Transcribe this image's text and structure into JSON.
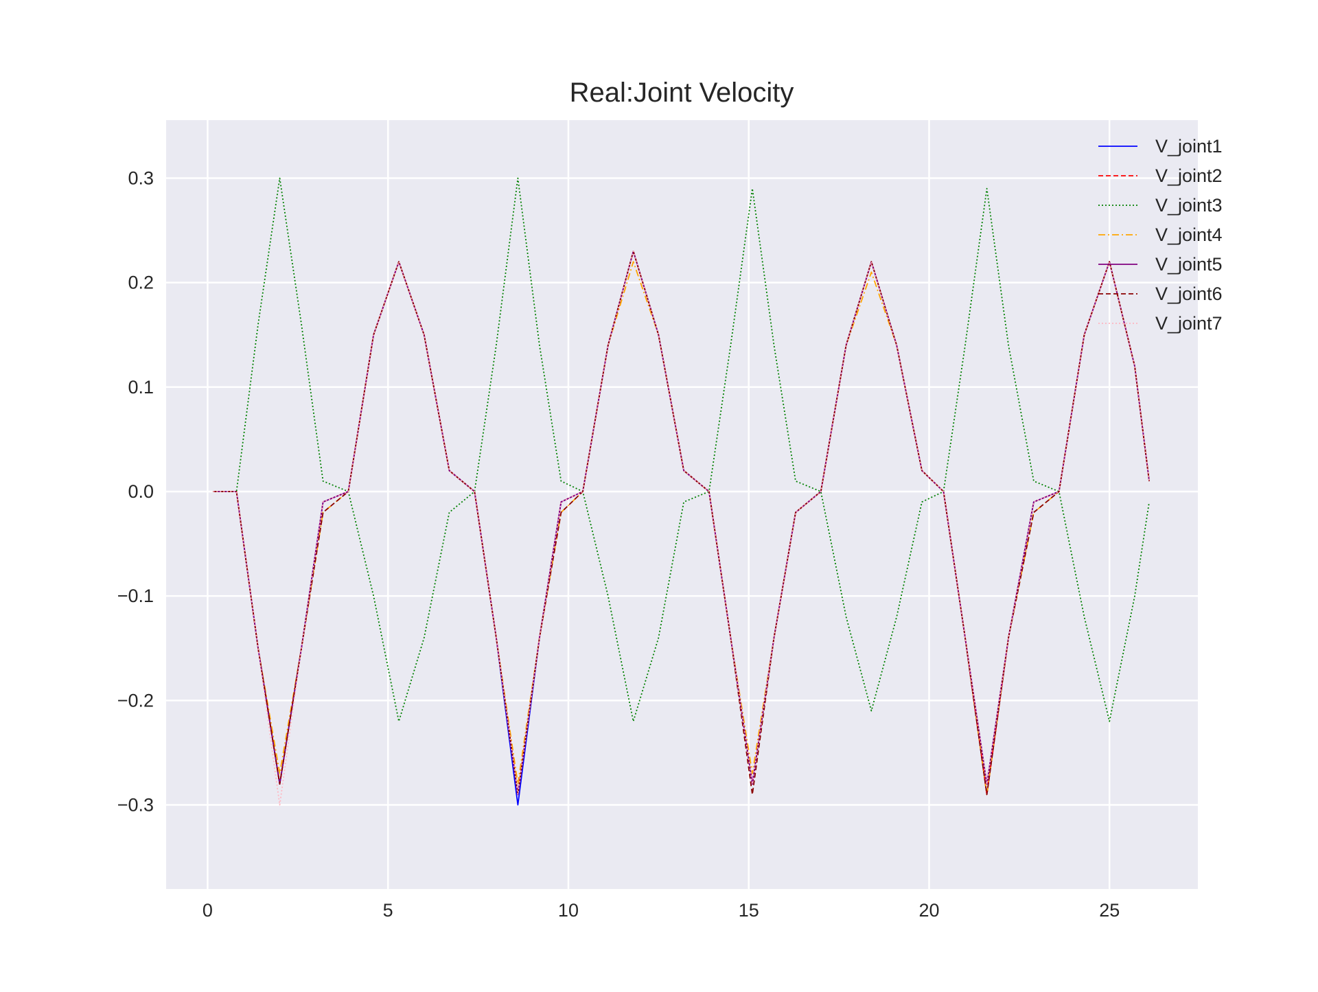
{
  "chart_data": {
    "type": "line",
    "title": "Real:Joint Velocity",
    "xlabel": "",
    "ylabel": "",
    "xlim": [
      -1.15,
      27.45
    ],
    "ylim": [
      -0.3805,
      0.3555
    ],
    "xticks": [
      0,
      5,
      10,
      15,
      20,
      25
    ],
    "yticks": [
      -0.3,
      -0.2,
      -0.1,
      0.0,
      0.1,
      0.2,
      0.3
    ],
    "xtick_labels": [
      "0",
      "5",
      "10",
      "15",
      "20",
      "25"
    ],
    "ytick_labels": [
      "−0.3",
      "−0.2",
      "−0.1",
      "0.0",
      "0.1",
      "0.2",
      "0.3"
    ],
    "grid": true,
    "background": "#eaeaf2",
    "legend_position": "top-right",
    "series": [
      {
        "name": "V_joint1",
        "color": "#0000ff",
        "style": "solid",
        "x": [
          0.15,
          0.8,
          1.4,
          2.0,
          2.6,
          3.2,
          3.9,
          4.6,
          5.3,
          6.0,
          6.7,
          7.4,
          8.0,
          8.6,
          9.2,
          9.8,
          10.4,
          11.1,
          11.8,
          12.5,
          13.2,
          13.9,
          14.5,
          15.1,
          15.7,
          16.3,
          17.0,
          17.7,
          18.4,
          19.1,
          19.8,
          20.4,
          21.0,
          21.6,
          22.2,
          22.9,
          23.6,
          24.3,
          25.0,
          25.7,
          26.1
        ],
        "y": [
          0.0,
          0.0,
          -0.15,
          -0.28,
          -0.15,
          -0.01,
          0.0,
          0.15,
          0.22,
          0.15,
          0.02,
          0.0,
          -0.14,
          -0.3,
          -0.14,
          -0.01,
          0.0,
          0.14,
          0.23,
          0.15,
          0.02,
          0.0,
          -0.14,
          -0.28,
          -0.14,
          -0.02,
          0.0,
          0.14,
          0.22,
          0.14,
          0.02,
          0.0,
          -0.14,
          -0.29,
          -0.14,
          -0.01,
          0.0,
          0.15,
          0.22,
          0.12,
          0.01
        ]
      },
      {
        "name": "V_joint2",
        "color": "#ff0000",
        "style": "dashed",
        "x": [
          0.15,
          0.8,
          1.4,
          2.0,
          2.6,
          3.2,
          3.9,
          4.6,
          5.3,
          6.0,
          6.7,
          7.4,
          8.0,
          8.6,
          9.2,
          9.8,
          10.4,
          11.1,
          11.8,
          12.5,
          13.2,
          13.9,
          14.5,
          15.1,
          15.7,
          16.3,
          17.0,
          17.7,
          18.4,
          19.1,
          19.8,
          20.4,
          21.0,
          21.6,
          22.2,
          22.9,
          23.6,
          24.3,
          25.0,
          25.7,
          26.1
        ],
        "y": [
          0.0,
          0.0,
          -0.15,
          -0.28,
          -0.15,
          -0.01,
          0.0,
          0.15,
          0.22,
          0.15,
          0.02,
          0.0,
          -0.14,
          -0.29,
          -0.14,
          -0.01,
          0.0,
          0.14,
          0.23,
          0.15,
          0.02,
          0.0,
          -0.14,
          -0.28,
          -0.14,
          -0.02,
          0.0,
          0.14,
          0.22,
          0.14,
          0.02,
          0.0,
          -0.14,
          -0.29,
          -0.14,
          -0.01,
          0.0,
          0.15,
          0.22,
          0.12,
          0.01
        ]
      },
      {
        "name": "V_joint3",
        "color": "#008000",
        "style": "dotted",
        "x": [
          0.15,
          0.8,
          1.4,
          2.0,
          2.6,
          3.2,
          3.9,
          4.6,
          5.3,
          6.0,
          6.7,
          7.4,
          8.0,
          8.6,
          9.2,
          9.8,
          10.4,
          11.1,
          11.8,
          12.5,
          13.2,
          13.9,
          14.5,
          15.1,
          15.7,
          16.3,
          17.0,
          17.7,
          18.4,
          19.1,
          19.8,
          20.4,
          21.0,
          21.6,
          22.2,
          22.9,
          23.6,
          24.3,
          25.0,
          25.7,
          26.1
        ],
        "y": [
          0.0,
          0.0,
          0.16,
          0.3,
          0.16,
          0.01,
          0.0,
          -0.1,
          -0.22,
          -0.14,
          -0.02,
          0.0,
          0.14,
          0.3,
          0.14,
          0.01,
          0.0,
          -0.1,
          -0.22,
          -0.14,
          -0.01,
          0.0,
          0.14,
          0.29,
          0.14,
          0.01,
          0.0,
          -0.12,
          -0.21,
          -0.12,
          -0.01,
          0.0,
          0.14,
          0.29,
          0.14,
          0.01,
          0.0,
          -0.12,
          -0.22,
          -0.1,
          -0.01
        ]
      },
      {
        "name": "V_joint4",
        "color": "#ffa500",
        "style": "dashdot",
        "x": [
          0.15,
          0.8,
          1.4,
          2.0,
          2.6,
          3.2,
          3.9,
          4.6,
          5.3,
          6.0,
          6.7,
          7.4,
          8.0,
          8.6,
          9.2,
          9.8,
          10.4,
          11.1,
          11.8,
          12.5,
          13.2,
          13.9,
          14.5,
          15.1,
          15.7,
          16.3,
          17.0,
          17.7,
          18.4,
          19.1,
          19.8,
          20.4,
          21.0,
          21.6,
          22.2,
          22.9,
          23.6,
          24.3,
          25.0,
          25.7,
          26.1
        ],
        "y": [
          0.0,
          0.0,
          -0.15,
          -0.27,
          -0.15,
          -0.02,
          0.0,
          0.15,
          0.22,
          0.15,
          0.02,
          0.0,
          -0.14,
          -0.28,
          -0.14,
          -0.02,
          0.0,
          0.14,
          0.22,
          0.15,
          0.02,
          0.0,
          -0.14,
          -0.27,
          -0.14,
          -0.02,
          0.0,
          0.14,
          0.21,
          0.14,
          0.02,
          0.0,
          -0.14,
          -0.29,
          -0.14,
          -0.02,
          0.0,
          0.15,
          0.22,
          0.12,
          0.01
        ]
      },
      {
        "name": "V_joint5",
        "color": "#800080",
        "style": "solid",
        "x": [
          0.15,
          0.8,
          1.4,
          2.0,
          2.6,
          3.2,
          3.9,
          4.6,
          5.3,
          6.0,
          6.7,
          7.4,
          8.0,
          8.6,
          9.2,
          9.8,
          10.4,
          11.1,
          11.8,
          12.5,
          13.2,
          13.9,
          14.5,
          15.1,
          15.7,
          16.3,
          17.0,
          17.7,
          18.4,
          19.1,
          19.8,
          20.4,
          21.0,
          21.6,
          22.2,
          22.9,
          23.6,
          24.3,
          25.0,
          25.7,
          26.1
        ],
        "y": [
          0.0,
          0.0,
          -0.15,
          -0.28,
          -0.15,
          -0.01,
          0.0,
          0.15,
          0.22,
          0.15,
          0.02,
          0.0,
          -0.14,
          -0.29,
          -0.14,
          -0.01,
          0.0,
          0.14,
          0.23,
          0.15,
          0.02,
          0.0,
          -0.14,
          -0.28,
          -0.14,
          -0.02,
          0.0,
          0.14,
          0.22,
          0.14,
          0.02,
          0.0,
          -0.14,
          -0.28,
          -0.14,
          -0.01,
          0.0,
          0.15,
          0.22,
          0.12,
          0.01
        ]
      },
      {
        "name": "V_joint6",
        "color": "#8b0000",
        "style": "dashed",
        "x": [
          0.15,
          0.8,
          1.4,
          2.0,
          2.6,
          3.2,
          3.9,
          4.6,
          5.3,
          6.0,
          6.7,
          7.4,
          8.0,
          8.6,
          9.2,
          9.8,
          10.4,
          11.1,
          11.8,
          12.5,
          13.2,
          13.9,
          14.5,
          15.1,
          15.7,
          16.3,
          17.0,
          17.7,
          18.4,
          19.1,
          19.8,
          20.4,
          21.0,
          21.6,
          22.2,
          22.9,
          23.6,
          24.3,
          25.0,
          25.7,
          26.1
        ],
        "y": [
          0.0,
          0.0,
          -0.15,
          -0.28,
          -0.15,
          -0.02,
          0.0,
          0.15,
          0.22,
          0.15,
          0.02,
          0.0,
          -0.14,
          -0.29,
          -0.14,
          -0.02,
          0.0,
          0.14,
          0.23,
          0.15,
          0.02,
          0.0,
          -0.14,
          -0.29,
          -0.14,
          -0.02,
          0.0,
          0.14,
          0.22,
          0.14,
          0.02,
          0.0,
          -0.14,
          -0.29,
          -0.14,
          -0.02,
          0.0,
          0.15,
          0.22,
          0.12,
          0.01
        ]
      },
      {
        "name": "V_joint7",
        "color": "#ffb6c1",
        "style": "dotted",
        "x": [
          0.15,
          0.8,
          1.4,
          2.0,
          2.6,
          3.2,
          3.9,
          4.6,
          5.3,
          6.0,
          6.7,
          7.4,
          8.0,
          8.6,
          9.2,
          9.8,
          10.4,
          11.1,
          11.8,
          12.5,
          13.2,
          13.9,
          14.5,
          15.1,
          15.7,
          16.3,
          17.0,
          17.7,
          18.4,
          19.1,
          19.8,
          20.4,
          21.0,
          21.6,
          22.2,
          22.9,
          23.6,
          24.3,
          25.0,
          25.7,
          26.1
        ],
        "y": [
          0.0,
          0.0,
          -0.15,
          -0.3,
          -0.15,
          -0.01,
          0.0,
          0.15,
          0.22,
          0.15,
          0.02,
          0.0,
          -0.14,
          -0.29,
          -0.14,
          -0.01,
          0.0,
          0.14,
          0.23,
          0.15,
          0.02,
          0.0,
          -0.14,
          -0.28,
          -0.14,
          -0.02,
          0.0,
          0.14,
          0.22,
          0.14,
          0.02,
          0.0,
          -0.14,
          -0.28,
          -0.14,
          -0.01,
          0.0,
          0.15,
          0.22,
          0.12,
          0.01
        ]
      }
    ]
  }
}
